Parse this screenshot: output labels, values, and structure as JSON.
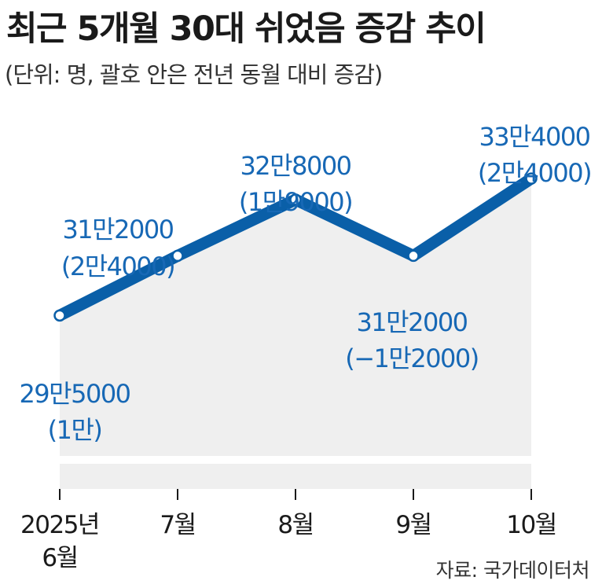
{
  "title": "최근 5개월 30대 쉬었음 증감 추이",
  "subtitle": "(단위: 명, 괄호 안은 전년 동월 대비 증감)",
  "source": "자료: 국가데이터처",
  "colors": {
    "line": "#0a5fa8",
    "label": "#1768b5",
    "area": "#efefef",
    "tick_text": "#1a1a1a"
  },
  "chart_data": {
    "type": "line",
    "title": "최근 5개월 30대 쉬었음 증감 추이",
    "subtitle": "(단위: 명, 괄호 안은 전년 동월 대비 증감)",
    "categories": [
      "2025년 6월",
      "7월",
      "8월",
      "9월",
      "10월"
    ],
    "x_tick_lines": [
      [
        "2025년",
        "6월"
      ],
      [
        "7월"
      ],
      [
        "8월"
      ],
      [
        "9월"
      ],
      [
        "10월"
      ]
    ],
    "values": [
      295000,
      312000,
      328000,
      312000,
      334000
    ],
    "ylim": [
      255000,
      345000
    ],
    "data_labels": [
      {
        "value": "29만5000",
        "change": "(1만)"
      },
      {
        "value": "31만2000",
        "change": "(2만4000)"
      },
      {
        "value": "32만8000",
        "change": "(1만9000)"
      },
      {
        "value": "31만2000",
        "change": "(−1만2000)"
      },
      {
        "value": "33만4000",
        "change": "(2만4000)"
      }
    ],
    "grid": false,
    "legend": "none"
  }
}
